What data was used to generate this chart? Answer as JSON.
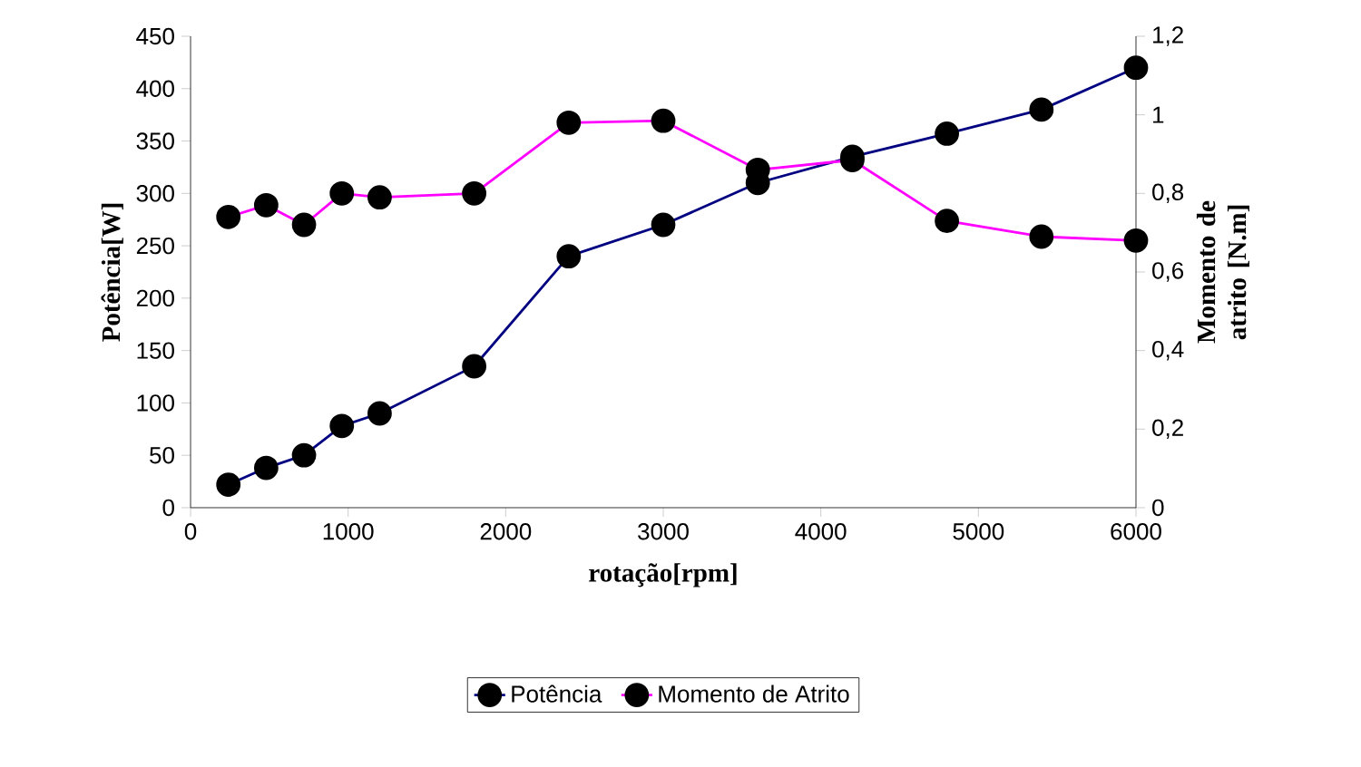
{
  "chart_data": {
    "type": "line",
    "x": [
      240,
      480,
      720,
      960,
      1200,
      1800,
      2400,
      3000,
      3600,
      4200,
      4800,
      5400,
      6000
    ],
    "series": [
      {
        "name": "Potência",
        "color": "#000080",
        "values": [
          22,
          38,
          50,
          78,
          90,
          135,
          240,
          270,
          310,
          335,
          357,
          380,
          420
        ]
      },
      {
        "name": "Momento de Atrito",
        "color": "#ff00ff",
        "axis": "y2",
        "values": [
          0.74,
          0.77,
          0.72,
          0.8,
          0.79,
          0.8,
          0.98,
          0.985,
          0.86,
          0.885,
          0.73,
          0.69,
          0.68
        ]
      }
    ],
    "xlabel": "rotação[rpm]",
    "ylabel": "Potência[W]",
    "y2label": "Momento de atrito [N.m]",
    "xlim": [
      0,
      6000
    ],
    "xticks": [
      0,
      1000,
      2000,
      3000,
      4000,
      5000,
      6000
    ],
    "ylim": [
      0,
      450
    ],
    "yticks": [
      0,
      50,
      100,
      150,
      200,
      250,
      300,
      350,
      400,
      450
    ],
    "y2lim": [
      0,
      1.2
    ],
    "y2ticks": [
      0,
      {
        "value": 0.2,
        "label": "0,2"
      },
      {
        "value": 0.4,
        "label": "0,4"
      },
      {
        "value": 0.6,
        "label": "0,6"
      },
      {
        "value": 0.8,
        "label": "0,8"
      },
      1,
      {
        "value": 1.2,
        "label": "1,2"
      }
    ],
    "legend": "bottom",
    "marker": "circle"
  }
}
